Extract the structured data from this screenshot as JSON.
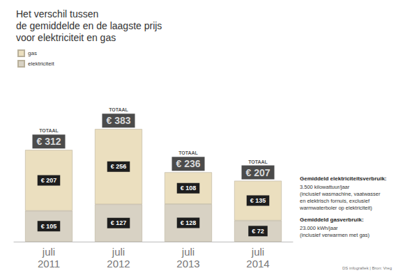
{
  "chart_data": {
    "type": "bar",
    "title": "Het verschil tussen\nde gemiddelde en de laagste prijs\nvoor elektriciteit en gas",
    "categories": [
      "juli\n2011",
      "juli\n2012",
      "juli\n2013",
      "juli\n2014"
    ],
    "stacked": true,
    "data_labels": true,
    "tick_labels": false,
    "legend": "top-left",
    "ylim": [
      0,
      450
    ],
    "series": [
      {
        "name": "elektriciteit",
        "color": "#d8d2c4",
        "values": [
          105,
          127,
          128,
          72
        ],
        "value_labels": [
          "€ 105",
          "€ 127",
          "€ 128",
          "€ 72"
        ]
      },
      {
        "name": "gas",
        "color": "#ebdfbf",
        "values": [
          207,
          256,
          108,
          135
        ],
        "value_labels": [
          "€ 207",
          "€ 256",
          "€ 108",
          "€ 135"
        ]
      }
    ],
    "total_title": "TOTAAL",
    "totals": [
      312,
      383,
      236,
      207
    ],
    "total_labels": [
      "€ 312",
      "€ 383",
      "€ 236",
      "€ 207"
    ],
    "annotations": [
      {
        "heading": "Gemiddeld elektriciteitsverbruik:",
        "text": "3.500 kilowattuur/jaar\n(inclusief wasmachine, vaatwasser\nen elektrisch fornuis, exclusief\nwarmwaterboler op elektriciteit)"
      },
      {
        "heading": "Gemiddeld gasverbruik:",
        "text": "23.000 kWh/jaar\n(inclusief verwarmen met gas)"
      }
    ],
    "source": "DS infografiek | Bron: Vreg"
  }
}
